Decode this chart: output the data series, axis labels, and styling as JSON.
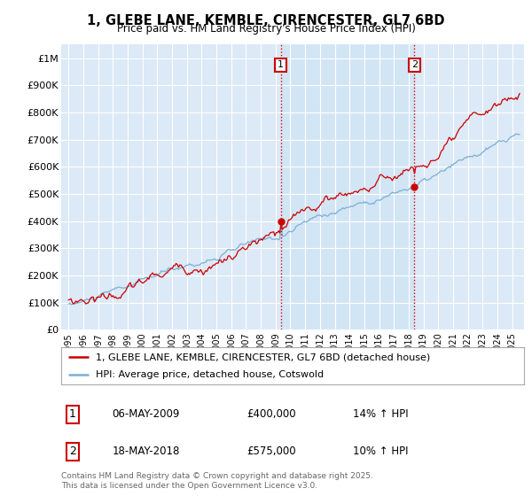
{
  "title": "1, GLEBE LANE, KEMBLE, CIRENCESTER, GL7 6BD",
  "subtitle": "Price paid vs. HM Land Registry's House Price Index (HPI)",
  "background_color": "#ffffff",
  "plot_bg_color": "#dce9f7",
  "grid_color": "#ffffff",
  "ylim": [
    0,
    1050000
  ],
  "yticks": [
    0,
    100000,
    200000,
    300000,
    400000,
    500000,
    600000,
    700000,
    800000,
    900000,
    1000000
  ],
  "ytick_labels": [
    "£0",
    "£100K",
    "£200K",
    "£300K",
    "£400K",
    "£500K",
    "£600K",
    "£700K",
    "£800K",
    "£900K",
    "£1M"
  ],
  "sale1_date": "06-MAY-2009",
  "sale1_price": 400000,
  "sale1_hpi": "14%",
  "sale2_date": "18-MAY-2018",
  "sale2_price": 575000,
  "sale2_hpi": "10%",
  "vline1_x": 2009.35,
  "vline2_x": 2018.38,
  "line1_color": "#cc0000",
  "line2_color": "#7ab0d4",
  "shade_color": "#d0e5f5",
  "legend1_label": "1, GLEBE LANE, KEMBLE, CIRENCESTER, GL7 6BD (detached house)",
  "legend2_label": "HPI: Average price, detached house, Cotswold",
  "footer": "Contains HM Land Registry data © Crown copyright and database right 2025.\nThis data is licensed under the Open Government Licence v3.0.",
  "xmin": 1994.5,
  "xmax": 2025.8
}
